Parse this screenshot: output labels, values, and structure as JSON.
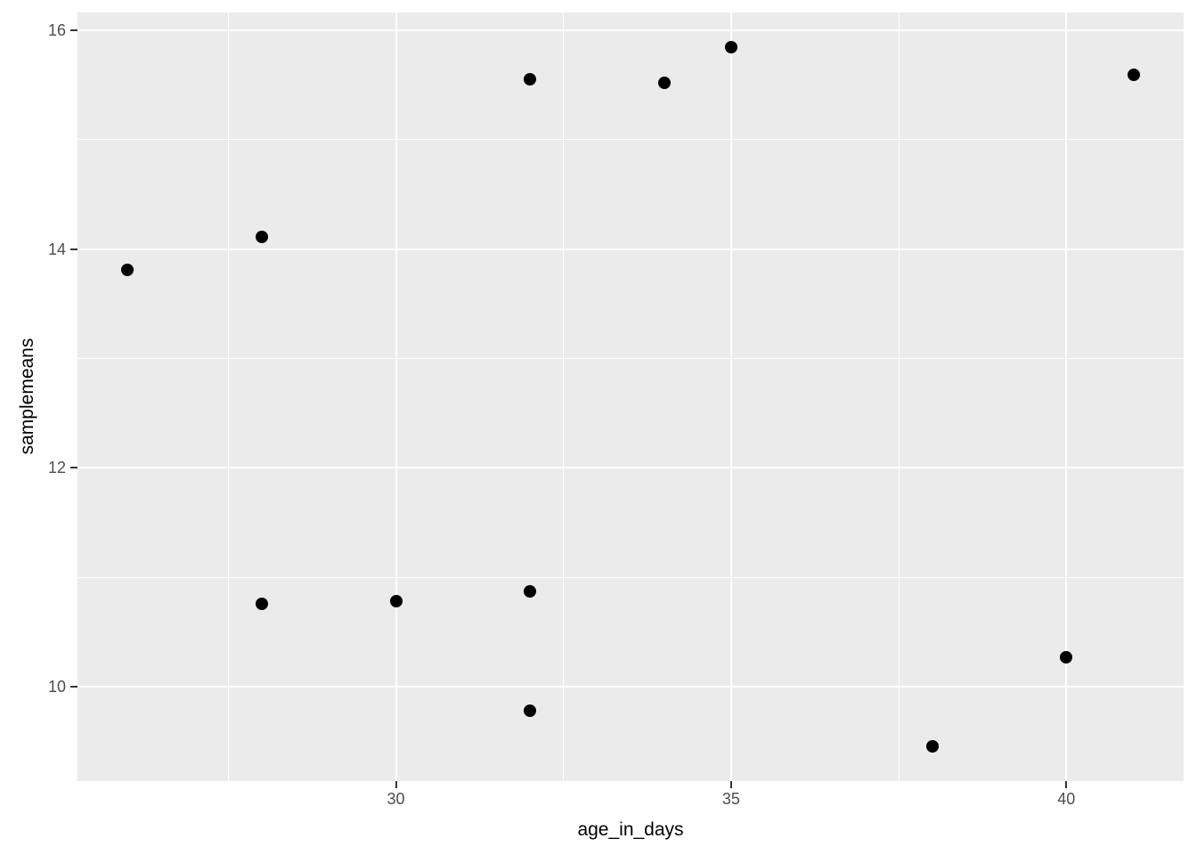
{
  "chart_data": {
    "type": "scatter",
    "title": "",
    "xlabel": "age_in_days",
    "ylabel": "samplemeans",
    "xlim": [
      25.25,
      41.75
    ],
    "ylim": [
      9.14,
      16.16
    ],
    "x_major_ticks": [
      30,
      35,
      40
    ],
    "x_minor_gridlines": [
      27.5,
      32.5,
      37.5
    ],
    "y_major_ticks": [
      10,
      12,
      14,
      16
    ],
    "y_minor_gridlines": [
      11,
      13,
      15
    ],
    "grid": true,
    "legend": false,
    "style": "ggplot2-grey-theme",
    "points": [
      {
        "x": 26,
        "y": 13.81
      },
      {
        "x": 28,
        "y": 14.11
      },
      {
        "x": 28,
        "y": 10.76
      },
      {
        "x": 30,
        "y": 10.78
      },
      {
        "x": 32,
        "y": 15.55
      },
      {
        "x": 32,
        "y": 10.87
      },
      {
        "x": 32,
        "y": 9.78
      },
      {
        "x": 34,
        "y": 15.52
      },
      {
        "x": 35,
        "y": 15.84
      },
      {
        "x": 38,
        "y": 9.46
      },
      {
        "x": 40,
        "y": 10.27
      },
      {
        "x": 41,
        "y": 15.59
      }
    ]
  },
  "colors": {
    "page_bg": "#FFFFFF",
    "panel_bg": "#EBEBEB",
    "gridline": "#FFFFFF",
    "point": "#000000",
    "tick_mark": "#333333",
    "tick_label": "#4D4D4D",
    "axis_title": "#000000"
  }
}
